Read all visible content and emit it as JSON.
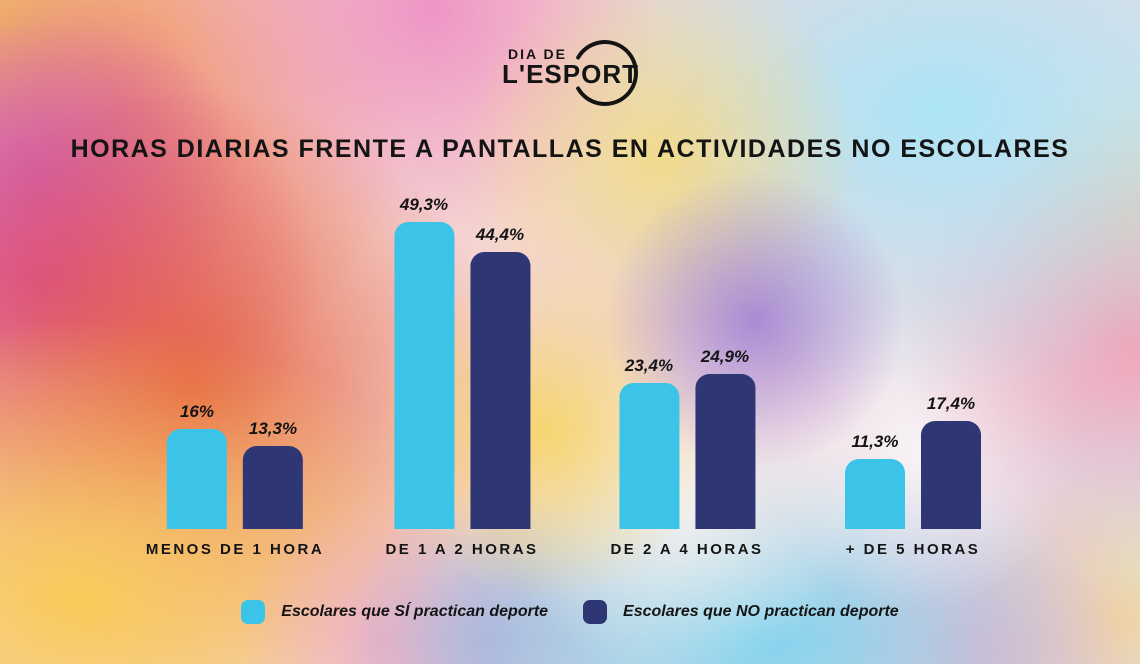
{
  "logo": {
    "top": "DIA DE",
    "bottom": "L'ESPORT"
  },
  "title": "HORAS DIARIAS FRENTE A PANTALLAS EN ACTIVIDADES NO ESCOLARES",
  "chart_data": {
    "type": "bar",
    "categories": [
      "MENOS DE 1 HORA",
      "DE 1 A 2 HORAS",
      "DE 2 A 4 HORAS",
      "+ DE 5 HORAS"
    ],
    "series": [
      {
        "name": "Escolares que SÍ practican deporte",
        "color": "#3BC4E7",
        "values": [
          16,
          49.3,
          23.4,
          11.3
        ],
        "value_labels": [
          "16%",
          "49,3%",
          "23,4%",
          "11,3%"
        ]
      },
      {
        "name": "Escolares que NO practican deporte",
        "color": "#2E3674",
        "values": [
          13.3,
          44.4,
          24.9,
          17.4
        ],
        "value_labels": [
          "13,3%",
          "44,4%",
          "24,9%",
          "17,4%"
        ]
      }
    ],
    "ylim": [
      0,
      55
    ],
    "value_suffix": "%",
    "grid": false,
    "legend_position": "bottom"
  },
  "legend": [
    {
      "label": "Escolares que SÍ practican deporte",
      "color": "#3BC4E7"
    },
    {
      "label": "Escolares que NO practican deporte",
      "color": "#2E3674"
    }
  ],
  "colors": {
    "bar_si": "#3BC4E7",
    "bar_no": "#2E3674",
    "text": "#141414"
  }
}
